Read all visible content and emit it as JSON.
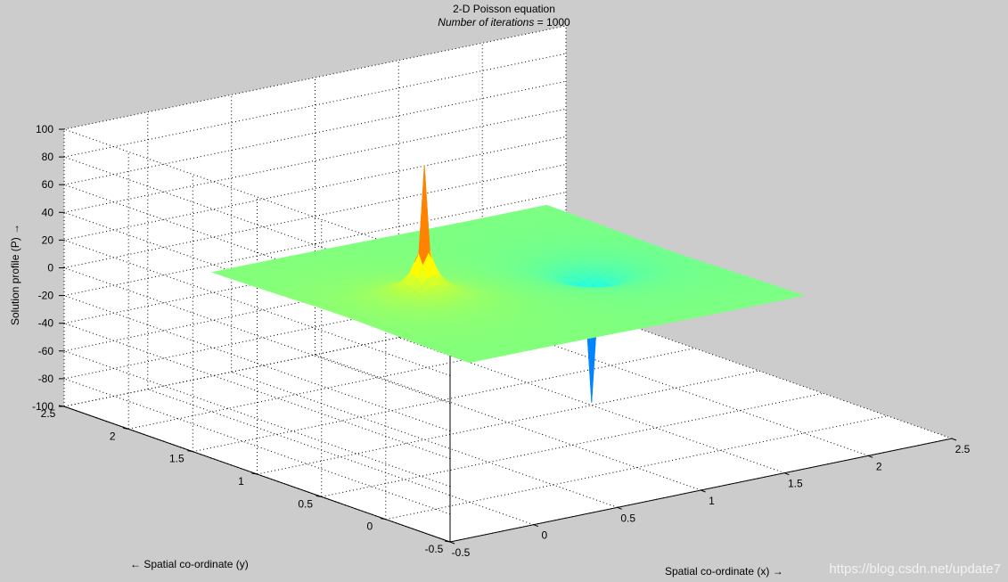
{
  "chart_data": {
    "type": "surface",
    "title": "2-D Poisson equation",
    "subtitle_label": "Number of iterations",
    "subtitle_sep": " = ",
    "subtitle_value": "1000",
    "xlabel": "Spatial co-ordinate (x) →",
    "ylabel": "← Spatial co-ordinate (y)",
    "zlabel": "Solution profile (P) →",
    "xlim": [
      -0.5,
      2.5
    ],
    "ylim": [
      -0.5,
      2.5
    ],
    "zlim": [
      -100,
      100
    ],
    "x_ticks": [
      "-0.5",
      "0",
      "0.5",
      "1",
      "1.5",
      "2",
      "2.5"
    ],
    "y_ticks": [
      "-0.5",
      "0",
      "0.5",
      "1",
      "1.5",
      "2",
      "2.5"
    ],
    "z_ticks": [
      "-100",
      "-80",
      "-60",
      "-40",
      "-20",
      "0",
      "20",
      "40",
      "60",
      "80",
      "100"
    ],
    "grid": true,
    "colormap": "jet",
    "surface_domain": {
      "x": [
        0,
        2
      ],
      "y": [
        0,
        2
      ]
    },
    "sources": [
      {
        "x": 0.5,
        "y": 1.0,
        "value": 100
      },
      {
        "x": 1.5,
        "y": 1.0,
        "value": -100
      }
    ]
  },
  "watermark": "https://blog.csdn.net/update7",
  "colors": {
    "background": "#cccccc",
    "axes_face": "#ffffff",
    "grid": "#000000"
  }
}
